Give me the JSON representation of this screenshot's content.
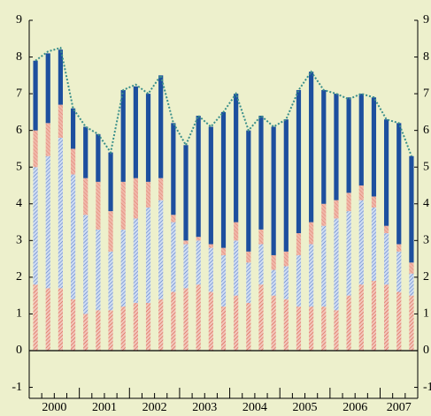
{
  "chart_data": {
    "type": "stacked_bar",
    "years": [
      "2000",
      "2001",
      "2002",
      "2003",
      "2004",
      "2005",
      "2006",
      "2007"
    ],
    "series": [
      {
        "color": "#e7a394",
        "values": [
          1.8,
          1.7,
          1.7,
          1.4,
          1.0,
          1.1,
          1.1,
          1.2,
          1.3,
          1.3,
          1.4,
          1.6,
          1.7,
          1.8,
          1.6,
          1.2,
          1.5,
          1.3,
          1.8,
          1.5,
          1.4,
          1.2,
          1.2,
          1.2,
          1.1,
          1.5,
          1.8,
          1.9,
          1.8,
          1.6,
          1.5
        ]
      },
      {
        "color": "#a9bfe6",
        "values": [
          3.2,
          3.6,
          4.1,
          3.4,
          2.7,
          2.2,
          1.6,
          2.1,
          2.3,
          2.6,
          2.7,
          1.9,
          1.2,
          1.2,
          1.2,
          1.4,
          1.5,
          1.1,
          1.1,
          0.7,
          0.9,
          1.4,
          1.7,
          2.2,
          2.5,
          2.3,
          2.3,
          2.0,
          1.4,
          1.1,
          0.6
        ]
      },
      {
        "color": "#e39a88",
        "values": [
          1.0,
          0.9,
          0.9,
          0.7,
          1.0,
          1.3,
          1.1,
          1.3,
          1.1,
          0.7,
          0.6,
          0.2,
          0.1,
          0.1,
          0.1,
          0.2,
          0.5,
          0.3,
          0.4,
          0.4,
          0.4,
          0.6,
          0.6,
          0.6,
          0.5,
          0.5,
          0.4,
          0.3,
          0.2,
          0.2,
          0.3
        ]
      },
      {
        "color": "#1d4f9e",
        "values": [
          1.9,
          1.9,
          1.5,
          1.1,
          1.4,
          1.3,
          1.6,
          2.5,
          2.5,
          2.4,
          2.8,
          2.5,
          2.6,
          3.3,
          3.2,
          3.7,
          3.5,
          3.3,
          3.1,
          3.5,
          3.6,
          3.9,
          4.1,
          3.1,
          2.9,
          2.6,
          2.5,
          2.7,
          2.9,
          3.3,
          2.9
        ]
      }
    ],
    "line": {
      "color": "#3a8f8a",
      "values": [
        7.9,
        8.15,
        8.25,
        6.6,
        6.1,
        5.9,
        5.4,
        7.1,
        7.25,
        7.0,
        7.5,
        6.2,
        5.6,
        6.4,
        6.1,
        6.5,
        7.0,
        6.0,
        6.4,
        6.1,
        6.3,
        7.1,
        7.6,
        7.1,
        7.0,
        6.85,
        7.0,
        6.9,
        6.3,
        6.2,
        5.3
      ]
    },
    "ylim": [
      -1.3,
      9
    ],
    "yticks": [
      -1,
      0,
      1,
      2,
      3,
      4,
      5,
      6,
      7,
      8,
      9
    ]
  }
}
